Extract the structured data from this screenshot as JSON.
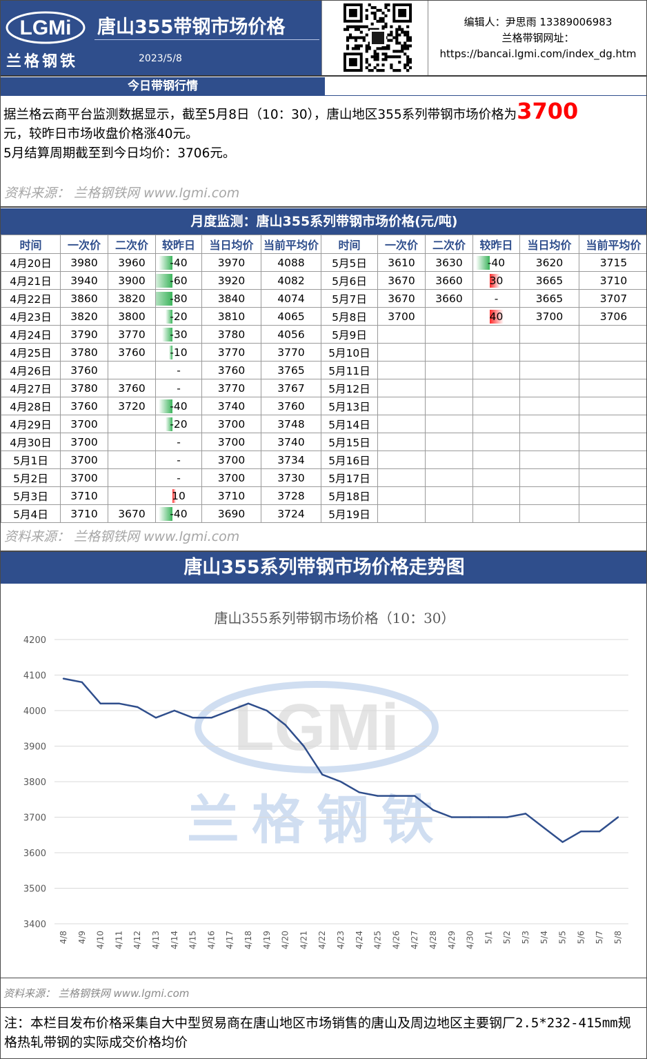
{
  "header": {
    "logo_text": "LGMi",
    "logo_cn": "兰格钢铁",
    "title": "唐山355带钢市场价格",
    "date": "2023/5/8",
    "editor": "编辑人：尹思雨 13389006983",
    "site_label": "兰格带钢网址：",
    "site_url": "https://bancai.lgmi.com/index_dg.htm"
  },
  "today_bar": "今日带钢行情",
  "summary": {
    "line1_pre": "据兰格云商平台监测数据显示，截至5月8日（10：30），唐山地区355系列带钢市场价格为",
    "price": "3700",
    "line2": "元，较昨日市场收盘价格涨40元。",
    "line3": "5月结算周期截至到今日均价：3706元。"
  },
  "source_text": "资料来源： 兰格钢铁网 www.lgmi.com",
  "monthly_bar": "月度监测：唐山355系列带钢市场价格(元/吨)",
  "table": {
    "headers": [
      "时间",
      "一次价",
      "二次价",
      "较昨日",
      "当日均价",
      "当前平均价",
      "时间",
      "一次价",
      "二次价",
      "较昨日",
      "当日均价",
      "当前平均价"
    ],
    "left": [
      {
        "date": "4月20日",
        "p1": "3980",
        "p2": "3960",
        "chg": "-40",
        "avg": "3970",
        "cur": "4088"
      },
      {
        "date": "4月21日",
        "p1": "3940",
        "p2": "3900",
        "chg": "-60",
        "avg": "3920",
        "cur": "4082"
      },
      {
        "date": "4月22日",
        "p1": "3860",
        "p2": "3820",
        "chg": "-80",
        "avg": "3840",
        "cur": "4074"
      },
      {
        "date": "4月23日",
        "p1": "3820",
        "p2": "3800",
        "chg": "-20",
        "avg": "3810",
        "cur": "4065"
      },
      {
        "date": "4月24日",
        "p1": "3790",
        "p2": "3770",
        "chg": "-30",
        "avg": "3780",
        "cur": "4056"
      },
      {
        "date": "4月25日",
        "p1": "3780",
        "p2": "3760",
        "chg": "-10",
        "avg": "3770",
        "cur": "3770"
      },
      {
        "date": "4月26日",
        "p1": "3760",
        "p2": "",
        "chg": "-",
        "avg": "3760",
        "cur": "3765"
      },
      {
        "date": "4月27日",
        "p1": "3780",
        "p2": "3760",
        "chg": "-",
        "avg": "3770",
        "cur": "3767"
      },
      {
        "date": "4月28日",
        "p1": "3760",
        "p2": "3720",
        "chg": "-40",
        "avg": "3740",
        "cur": "3760"
      },
      {
        "date": "4月29日",
        "p1": "3700",
        "p2": "",
        "chg": "-20",
        "avg": "3700",
        "cur": "3748"
      },
      {
        "date": "4月30日",
        "p1": "3700",
        "p2": "",
        "chg": "-",
        "avg": "3700",
        "cur": "3740"
      },
      {
        "date": "5月1日",
        "p1": "3700",
        "p2": "",
        "chg": "-",
        "avg": "3700",
        "cur": "3734"
      },
      {
        "date": "5月2日",
        "p1": "3700",
        "p2": "",
        "chg": "-",
        "avg": "3700",
        "cur": "3730"
      },
      {
        "date": "5月3日",
        "p1": "3710",
        "p2": "",
        "chg": "10",
        "avg": "3710",
        "cur": "3728"
      },
      {
        "date": "5月4日",
        "p1": "3710",
        "p2": "3670",
        "chg": "-40",
        "avg": "3690",
        "cur": "3724"
      }
    ],
    "right": [
      {
        "date": "5月5日",
        "p1": "3610",
        "p2": "3630",
        "chg": "-40",
        "avg": "3620",
        "cur": "3715"
      },
      {
        "date": "5月6日",
        "p1": "3670",
        "p2": "3660",
        "chg": "30",
        "avg": "3665",
        "cur": "3710"
      },
      {
        "date": "5月7日",
        "p1": "3670",
        "p2": "3660",
        "chg": "-",
        "avg": "3665",
        "cur": "3707"
      },
      {
        "date": "5月8日",
        "p1": "3700",
        "p2": "",
        "chg": "40",
        "avg": "3700",
        "cur": "3706"
      },
      {
        "date": "5月9日",
        "p1": "",
        "p2": "",
        "chg": "",
        "avg": "",
        "cur": ""
      },
      {
        "date": "5月10日",
        "p1": "",
        "p2": "",
        "chg": "",
        "avg": "",
        "cur": ""
      },
      {
        "date": "5月11日",
        "p1": "",
        "p2": "",
        "chg": "",
        "avg": "",
        "cur": ""
      },
      {
        "date": "5月12日",
        "p1": "",
        "p2": "",
        "chg": "",
        "avg": "",
        "cur": ""
      },
      {
        "date": "5月13日",
        "p1": "",
        "p2": "",
        "chg": "",
        "avg": "",
        "cur": ""
      },
      {
        "date": "5月14日",
        "p1": "",
        "p2": "",
        "chg": "",
        "avg": "",
        "cur": ""
      },
      {
        "date": "5月15日",
        "p1": "",
        "p2": "",
        "chg": "",
        "avg": "",
        "cur": ""
      },
      {
        "date": "5月16日",
        "p1": "",
        "p2": "",
        "chg": "",
        "avg": "",
        "cur": ""
      },
      {
        "date": "5月17日",
        "p1": "",
        "p2": "",
        "chg": "",
        "avg": "",
        "cur": ""
      },
      {
        "date": "5月18日",
        "p1": "",
        "p2": "",
        "chg": "",
        "avg": "",
        "cur": ""
      },
      {
        "date": "5月19日",
        "p1": "",
        "p2": "",
        "chg": "",
        "avg": "",
        "cur": ""
      }
    ],
    "change_colors": {
      "down": "#3cb45c",
      "up": "#ff2a2a"
    }
  },
  "trend_bar": "唐山355系列带钢市场价格走势图",
  "chart_data": {
    "type": "line",
    "title": "唐山355系列带钢市场价格（10：30）",
    "xlabel": "",
    "ylabel": "",
    "ylim": [
      3400,
      4200
    ],
    "yticks": [
      3400,
      3500,
      3600,
      3700,
      3800,
      3900,
      4000,
      4100,
      4200
    ],
    "grid": true,
    "legend": "none",
    "x": [
      "4/8",
      "4/9",
      "4/10",
      "4/11",
      "4/12",
      "4/13",
      "4/14",
      "4/15",
      "4/16",
      "4/17",
      "4/18",
      "4/19",
      "4/20",
      "4/21",
      "4/22",
      "4/23",
      "4/24",
      "4/25",
      "4/26",
      "4/27",
      "4/28",
      "4/29",
      "4/30",
      "5/1",
      "5/2",
      "5/3",
      "5/4",
      "5/5",
      "5/6",
      "5/7",
      "5/8"
    ],
    "series": [
      {
        "values": [
          4090,
          4080,
          4020,
          4020,
          4010,
          3980,
          4000,
          3980,
          3980,
          4000,
          4020,
          4000,
          3960,
          3900,
          3820,
          3800,
          3770,
          3760,
          3760,
          3760,
          3720,
          3700,
          3700,
          3700,
          3700,
          3710,
          3670,
          3630,
          3660,
          3660,
          3700
        ],
        "color": "#2f4e8c"
      }
    ],
    "watermark": "LGMi 兰格钢铁"
  },
  "chart_source": "资料来源： 兰格钢铁网 www.lgmi.com",
  "note": "注：本栏目发布价格采集自大中型贸易商在唐山地区市场销售的唐山及周边地区主要钢厂2.5*232-415mm规格热轧带钢的实际成交价格均价"
}
